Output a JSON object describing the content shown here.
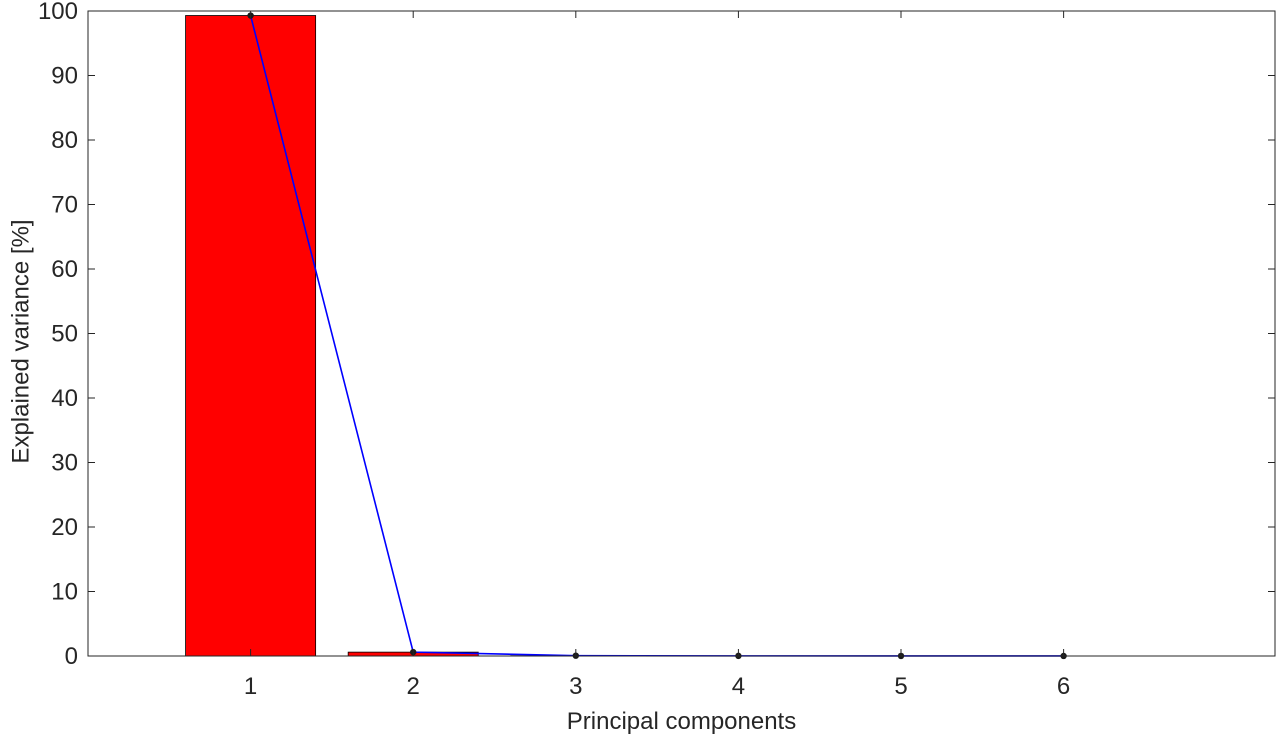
{
  "chart_data": {
    "type": "bar",
    "title": "",
    "xlabel": "Principal components",
    "ylabel": "Explained variance [%]",
    "categories": [
      "1",
      "2",
      "3",
      "4",
      "5",
      "6"
    ],
    "x": [
      1,
      2,
      3,
      4,
      5,
      6
    ],
    "xlim": [
      0,
      7.3
    ],
    "ylim": [
      0,
      100
    ],
    "yticks": [
      0,
      10,
      20,
      30,
      40,
      50,
      60,
      70,
      80,
      90,
      100
    ],
    "grid": false,
    "legend": "none",
    "series": [
      {
        "kind": "bar",
        "values": [
          99.3,
          0.6,
          0.05,
          0.02,
          0.01,
          0.005
        ],
        "color": "#ff0000"
      },
      {
        "kind": "line",
        "values": [
          99.3,
          0.6,
          0.05,
          0.02,
          0.01,
          0.005
        ],
        "color": "#0000ff",
        "marker_color": "#1a1a1a"
      }
    ]
  }
}
